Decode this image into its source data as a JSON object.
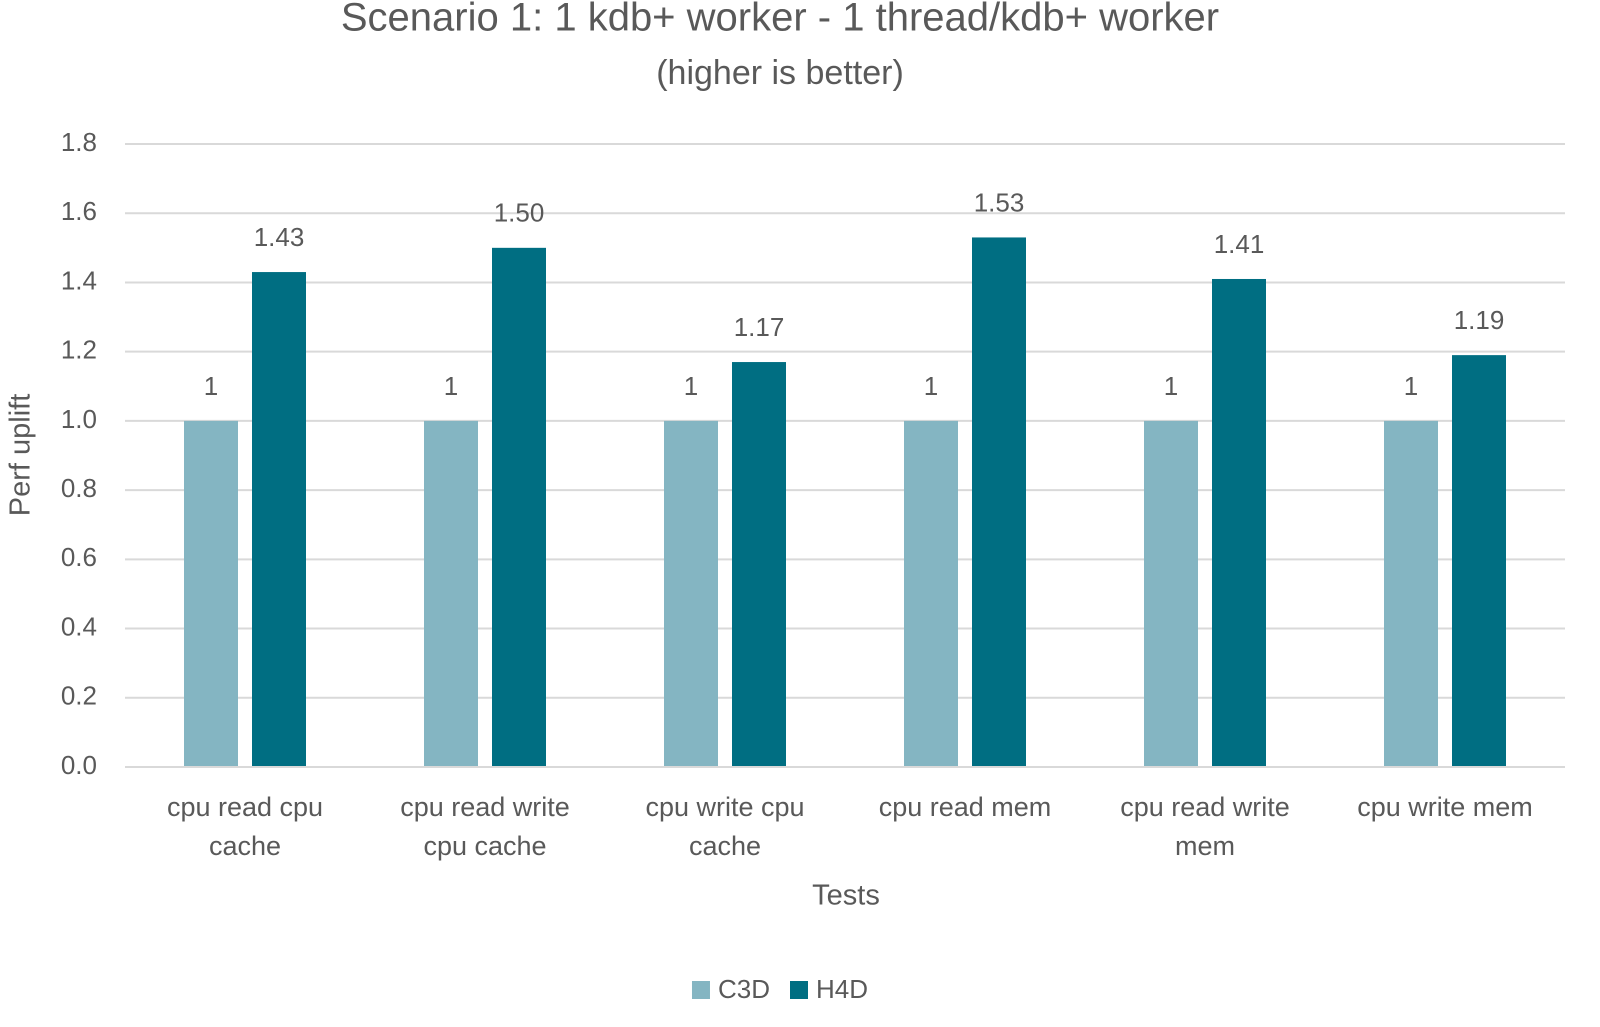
{
  "chart_data": {
    "type": "bar",
    "title": "Scenario 1: 1 kdb+ worker - 1 thread/kdb+ worker",
    "subtitle": "(higher is better)",
    "x_label": "Tests",
    "y_label": "Perf uplift",
    "categories": [
      "cpu read cpu cache",
      "cpu read write cpu cache",
      "cpu write cpu cache",
      "cpu read mem",
      "cpu read write mem",
      "cpu write mem"
    ],
    "series": [
      {
        "name": "C3D",
        "color": "#84b5c2",
        "values": [
          1,
          1,
          1,
          1,
          1,
          1
        ]
      },
      {
        "name": "H4D",
        "color": "#006e82",
        "values": [
          1.43,
          1.5,
          1.17,
          1.53,
          1.41,
          1.19
        ],
        "value_labels": [
          "1.43",
          "1.50",
          "1.17",
          "1.53",
          "1.41",
          "1.19"
        ]
      }
    ],
    "ylim": [
      0,
      1.8
    ],
    "yticks": [
      {
        "value": 0,
        "label": "0.0"
      },
      0.2,
      0.4,
      0.6,
      0.8,
      {
        "value": 1,
        "label": "1.0"
      },
      1.2,
      1.4,
      1.6,
      1.8
    ],
    "grid": true,
    "legend": "bottom"
  }
}
